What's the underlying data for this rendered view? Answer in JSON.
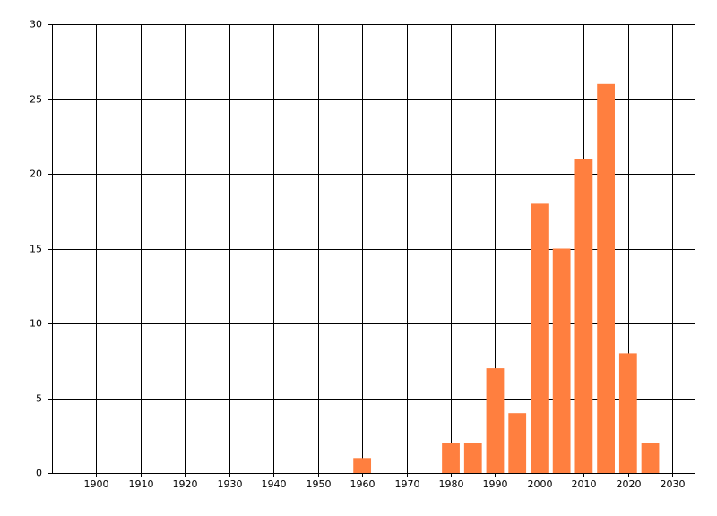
{
  "chart_data": {
    "type": "bar",
    "x": [
      1960,
      1980,
      1985,
      1990,
      1995,
      2000,
      2005,
      2010,
      2015,
      2020,
      2025
    ],
    "values": [
      1,
      2,
      2,
      7,
      4,
      18,
      15,
      21,
      26,
      8,
      2
    ],
    "color": "#ff7f3f",
    "xlim": [
      1890,
      2035
    ],
    "xticks": [
      1900,
      1910,
      1920,
      1930,
      1940,
      1950,
      1960,
      1970,
      1980,
      1990,
      2000,
      2010,
      2020,
      2030
    ],
    "ylim": [
      0,
      30
    ],
    "yticks": [
      0,
      5,
      10,
      15,
      20,
      25,
      30
    ],
    "grid": true
  }
}
